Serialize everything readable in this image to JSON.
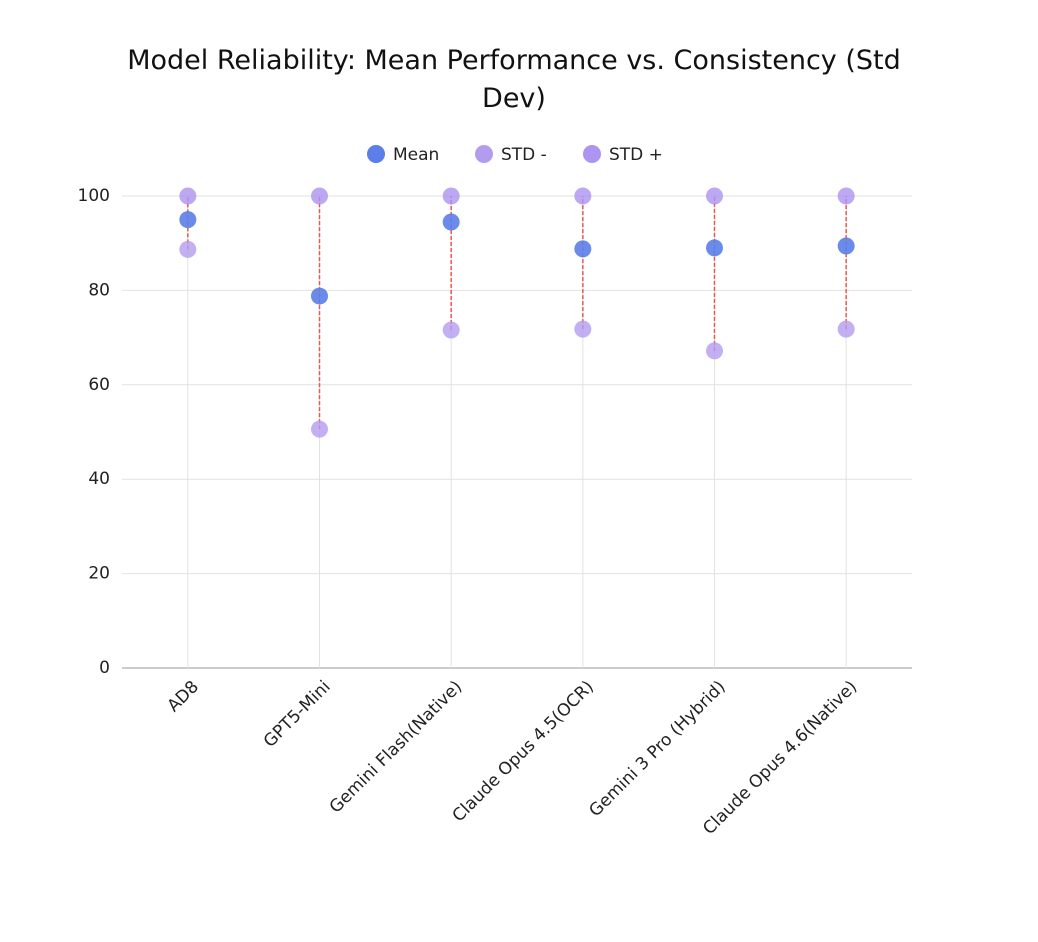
{
  "chart_data": {
    "type": "dot",
    "title": "Model Reliability: Mean Performance vs. Consistency (Std Dev)",
    "categories": [
      "AD8",
      "GPT5-Mini",
      "Gemini Flash(Native)",
      "Claude Opus 4.5(OCR)",
      "Gemini 3 Pro (Hybrid)",
      "Claude Opus 4.6(Native)"
    ],
    "series": [
      {
        "name": "Mean",
        "color": "#5b7ee8",
        "values": [
          95,
          78.8,
          94.5,
          88.8,
          89,
          89.4
        ]
      },
      {
        "name": "STD -",
        "color": "#b39cf0",
        "values": [
          88.7,
          50.6,
          71.6,
          71.8,
          67.2,
          71.8
        ]
      },
      {
        "name": "STD +",
        "color": "#ad94f0",
        "values": [
          100,
          100,
          100,
          100,
          100,
          100
        ]
      }
    ],
    "ylim": [
      0,
      100
    ],
    "yticks": [
      0,
      20,
      40,
      60,
      80,
      100
    ],
    "grid": true,
    "legend": "top",
    "connector_color": "#e8584f"
  }
}
